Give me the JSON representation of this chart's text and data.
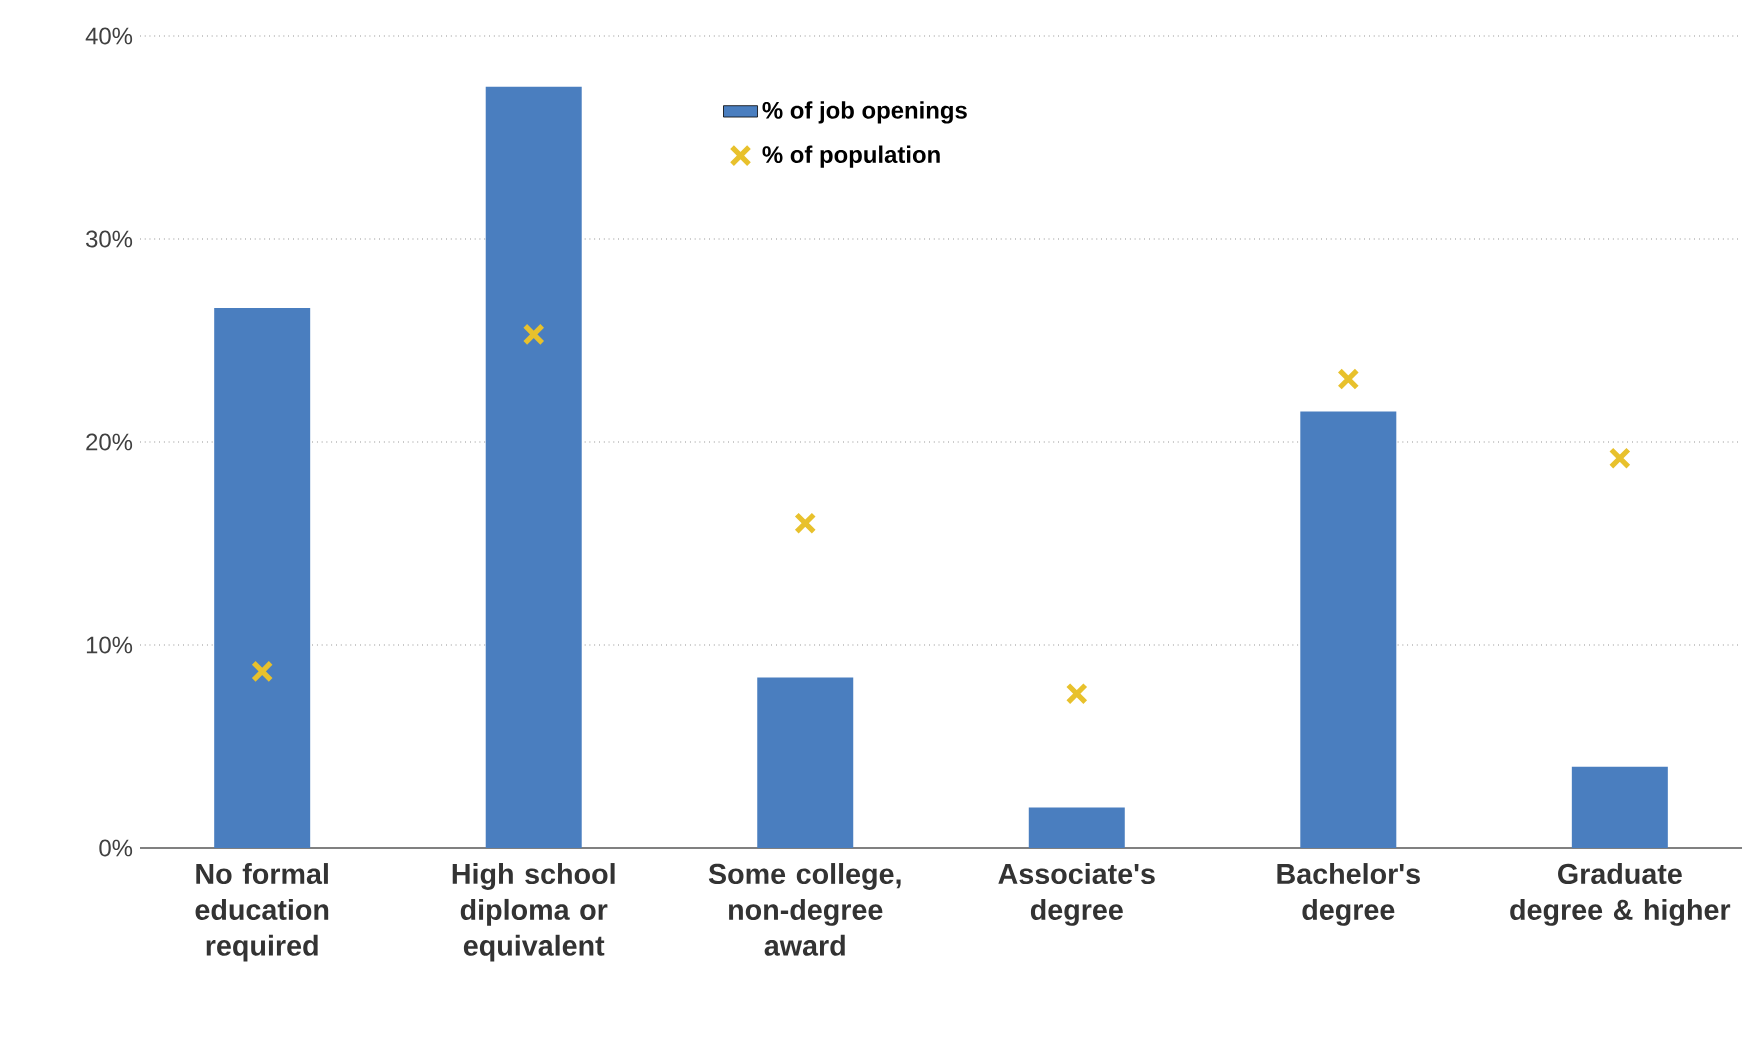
{
  "chart_data": {
    "type": "bar",
    "categories": [
      "No formal education required",
      "High school diploma or equivalent",
      "Some college, non-degree award",
      "Associate's degree",
      "Bachelor's degree",
      "Graduate degree & higher"
    ],
    "series": [
      {
        "name": "% of job openings",
        "color": "#4a7ebf",
        "values": [
          26.6,
          37.5,
          8.4,
          2.0,
          21.5,
          4.0
        ]
      },
      {
        "name": "% of population",
        "type": "scatter",
        "marker": "cross",
        "color": "#e8c12c",
        "values": [
          8.7,
          25.3,
          16.0,
          7.6,
          23.1,
          19.2
        ]
      }
    ],
    "ylim": [
      0,
      40
    ],
    "yticks": [
      {
        "value": 0,
        "label": "0%"
      },
      {
        "value": 10,
        "label": "10%"
      },
      {
        "value": 20,
        "label": "20%"
      },
      {
        "value": 30,
        "label": "30%"
      },
      {
        "value": 40,
        "label": "40%"
      }
    ],
    "grid": "y",
    "legend": "top"
  }
}
